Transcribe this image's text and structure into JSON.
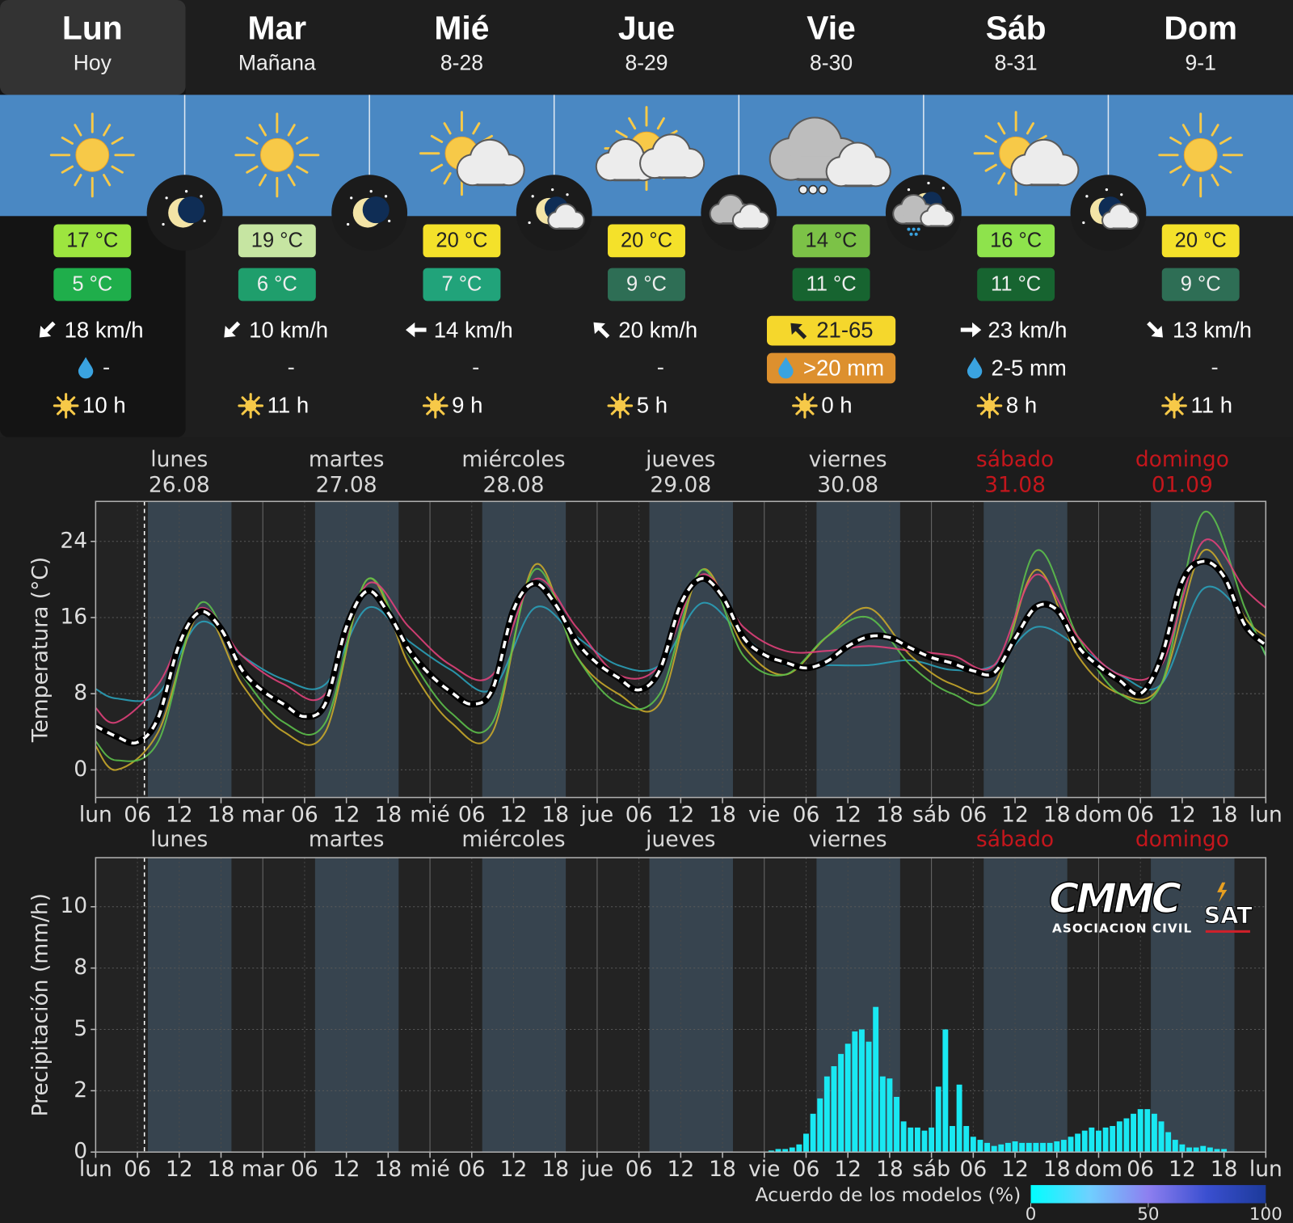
{
  "forecast": {
    "days": [
      {
        "day": "Lun",
        "sub": "Hoy",
        "max": "17 °C",
        "min": "5 °C",
        "wind": "18 km/h",
        "precip": "-",
        "sun": "10 h",
        "max_color": "#9de53f",
        "min_color": "#1fae4b"
      },
      {
        "day": "Mar",
        "sub": "Mañana",
        "max": "19 °C",
        "min": "6 °C",
        "wind": "10 km/h",
        "precip": "-",
        "sun": "11 h",
        "max_color": "#c6e5a2",
        "min_color": "#1f9e6c"
      },
      {
        "day": "Mié",
        "sub": "8-28",
        "max": "20 °C",
        "min": "7 °C",
        "wind": "14 km/h",
        "precip": "-",
        "sun": "9 h",
        "max_color": "#f4e12a",
        "min_color": "#21a37a"
      },
      {
        "day": "Jue",
        "sub": "8-29",
        "max": "20 °C",
        "min": "9 °C",
        "wind": "20 km/h",
        "precip": "-",
        "sun": "5 h",
        "max_color": "#f4e12a",
        "min_color": "#2e6e55"
      },
      {
        "day": "Vie",
        "sub": "8-30",
        "max": "14 °C",
        "min": "11 °C",
        "wind": "21-65",
        "precip": ">20 mm",
        "sun": "0 h",
        "max_color": "#7cc247",
        "min_color": "#176430",
        "wind_badge": "#f5d72c",
        "precip_badge": "#dd902e"
      },
      {
        "day": "Sáb",
        "sub": "8-31",
        "max": "16 °C",
        "min": "11 °C",
        "wind": "23 km/h",
        "precip": "2-5 mm",
        "sun": "8 h",
        "max_color": "#8ee34c",
        "min_color": "#176430"
      },
      {
        "day": "Dom",
        "sub": "9-1",
        "max": "20 °C",
        "min": "9 °C",
        "wind": "13 km/h",
        "precip": "-",
        "sun": "11 h",
        "max_color": "#f4e12a",
        "min_color": "#2e6e55"
      }
    ]
  },
  "chart_data": [
    {
      "type": "line",
      "y_label": "Temperatura (°C)",
      "day_labels": [
        {
          "name": "lunes",
          "date": "26.08",
          "color": "#d8d8d8"
        },
        {
          "name": "martes",
          "date": "27.08",
          "color": "#d8d8d8"
        },
        {
          "name": "miércoles",
          "date": "28.08",
          "color": "#d8d8d8"
        },
        {
          "name": "jueves",
          "date": "29.08",
          "color": "#d8d8d8"
        },
        {
          "name": "viernes",
          "date": "30.08",
          "color": "#d8d8d8"
        },
        {
          "name": "sábado",
          "date": "31.08",
          "color": "#c4161c"
        },
        {
          "name": "domingo",
          "date": "01.09",
          "color": "#c4161c"
        }
      ],
      "xlim": [
        0,
        168
      ],
      "xticks": [
        {
          "value": 0,
          "label": "lun"
        },
        {
          "value": 6,
          "label": "06"
        },
        12,
        18,
        {
          "value": 24,
          "label": "mar"
        },
        {
          "value": 30,
          "label": "06"
        },
        {
          "value": 36,
          "label": "12"
        },
        {
          "value": 42,
          "label": "18"
        },
        {
          "value": 48,
          "label": "mié"
        },
        {
          "value": 54,
          "label": "06"
        },
        {
          "value": 60,
          "label": "12"
        },
        {
          "value": 66,
          "label": "18"
        },
        {
          "value": 72,
          "label": "jue"
        },
        {
          "value": 78,
          "label": "06"
        },
        {
          "value": 84,
          "label": "12"
        },
        {
          "value": 90,
          "label": "18"
        },
        {
          "value": 96,
          "label": "vie"
        },
        {
          "value": 102,
          "label": "06"
        },
        {
          "value": 108,
          "label": "12"
        },
        {
          "value": 114,
          "label": "18"
        },
        {
          "value": 120,
          "label": "sáb"
        },
        {
          "value": 126,
          "label": "06"
        },
        {
          "value": 132,
          "label": "12"
        },
        {
          "value": 138,
          "label": "18"
        },
        {
          "value": 144,
          "label": "dom"
        },
        {
          "value": 150,
          "label": "06"
        },
        {
          "value": 156,
          "label": "12"
        },
        {
          "value": 162,
          "label": "18"
        },
        {
          "value": 168,
          "label": "lun"
        }
      ],
      "ylim": [
        -2.9,
        28.2
      ],
      "yticks": [
        0,
        8,
        16,
        24
      ],
      "grid": true,
      "now": 7,
      "daylight": [
        7.5,
        19.5
      ],
      "series": [
        {
          "color": "#2aa0b8",
          "x": [
            0,
            3,
            9,
            15,
            21,
            27,
            33,
            39,
            45,
            51,
            57,
            63,
            69,
            75,
            81,
            87,
            93,
            99,
            105,
            111,
            117,
            123,
            129,
            135,
            141,
            147,
            153,
            159,
            165,
            168
          ],
          "values": [
            8.5,
            7.5,
            8,
            15.5,
            12,
            9.5,
            9,
            17,
            13.5,
            10.5,
            8.5,
            17,
            14,
            11,
            11,
            17.5,
            14,
            11,
            11,
            11,
            11.5,
            10.5,
            11,
            15,
            13,
            10,
            9,
            19,
            16,
            12
          ]
        },
        {
          "color": "#c8a82a",
          "x": [
            0,
            3,
            9,
            15,
            21,
            27,
            33,
            39,
            45,
            51,
            57,
            63,
            69,
            75,
            81,
            87,
            93,
            99,
            105,
            111,
            117,
            123,
            129,
            135,
            141,
            147,
            153,
            159,
            165,
            168
          ],
          "values": [
            2.5,
            0,
            4,
            16.5,
            9,
            4,
            4,
            20,
            11,
            5,
            4,
            21.5,
            12,
            8,
            7,
            21,
            13,
            10,
            14,
            17,
            12,
            9,
            9,
            21,
            12,
            8,
            9,
            23,
            16,
            14
          ]
        },
        {
          "color": "#5cbf4a",
          "x": [
            0,
            3,
            9,
            15,
            21,
            27,
            33,
            39,
            45,
            51,
            57,
            63,
            69,
            75,
            81,
            87,
            93,
            99,
            105,
            111,
            117,
            123,
            129,
            135,
            141,
            147,
            153,
            159,
            165,
            168
          ],
          "values": [
            3,
            1,
            3,
            17.5,
            10,
            5,
            5,
            20,
            12,
            6,
            5,
            21,
            12,
            7,
            8,
            21,
            12,
            10,
            14,
            16,
            11,
            8,
            8,
            23,
            14,
            8,
            9,
            27,
            17,
            12
          ]
        },
        {
          "color": "#e0407a",
          "x": [
            0,
            3,
            9,
            15,
            21,
            27,
            33,
            39,
            45,
            51,
            57,
            63,
            69,
            75,
            81,
            87,
            93,
            99,
            105,
            111,
            117,
            123,
            129,
            135,
            141,
            147,
            153,
            159,
            165,
            168
          ],
          "values": [
            6.5,
            5,
            9,
            17,
            12,
            9,
            8,
            19.5,
            15,
            11,
            10,
            20,
            15,
            10,
            11,
            20.5,
            15,
            12.5,
            12.5,
            13,
            12.5,
            12,
            11,
            20.5,
            14,
            10,
            11,
            24,
            19,
            17
          ]
        },
        {
          "color": "#ffffff",
          "style": "dashed",
          "x": [
            0,
            3,
            6,
            9,
            12,
            15,
            18,
            21,
            24,
            27,
            30,
            33,
            36,
            39,
            42,
            45,
            48,
            51,
            54,
            57,
            60,
            63,
            66,
            69,
            72,
            75,
            78,
            81,
            84,
            87,
            90,
            93,
            96,
            99,
            102,
            105,
            108,
            111,
            114,
            117,
            120,
            123,
            126,
            129,
            132,
            135,
            138,
            141,
            144,
            147,
            150,
            153,
            156,
            159,
            162,
            165,
            168
          ],
          "values": [
            4.6,
            3.5,
            2.9,
            5.5,
            13.2,
            16.6,
            14.8,
            10.5,
            8.3,
            6.9,
            5.6,
            7.0,
            15.0,
            18.8,
            16.5,
            12.6,
            10.0,
            8.2,
            6.9,
            8.5,
            16.8,
            19.6,
            17.4,
            13.5,
            11.2,
            9.7,
            8.4,
            10.5,
            17.4,
            20.1,
            18.2,
            13.9,
            12.1,
            11.3,
            10.7,
            11.4,
            13.0,
            14.0,
            13.9,
            12.8,
            11.8,
            11.2,
            10.4,
            10.2,
            13.8,
            17.1,
            16.8,
            13.0,
            10.9,
            9.4,
            8.0,
            11.8,
            19.8,
            21.9,
            20.3,
            15.2,
            13.1
          ]
        }
      ]
    },
    {
      "type": "bar",
      "y_label": "Precipitación (mm/h)",
      "day_labels": [
        {
          "name": "lunes",
          "color": "#d8d8d8"
        },
        {
          "name": "martes",
          "color": "#d8d8d8"
        },
        {
          "name": "miércoles",
          "color": "#d8d8d8"
        },
        {
          "name": "jueves",
          "color": "#d8d8d8"
        },
        {
          "name": "viernes",
          "color": "#d8d8d8"
        },
        {
          "name": "sábado",
          "color": "#c4161c"
        },
        {
          "name": "domingo",
          "color": "#c4161c"
        }
      ],
      "xlim": [
        0,
        168
      ],
      "xticks": [
        {
          "value": 0,
          "label": "lun"
        },
        {
          "value": 6,
          "label": "06"
        },
        12,
        18,
        {
          "value": 24,
          "label": "mar"
        },
        {
          "value": 30,
          "label": "06"
        },
        {
          "value": 36,
          "label": "12"
        },
        {
          "value": 42,
          "label": "18"
        },
        {
          "value": 48,
          "label": "mié"
        },
        {
          "value": 54,
          "label": "06"
        },
        {
          "value": 60,
          "label": "12"
        },
        {
          "value": 66,
          "label": "18"
        },
        {
          "value": 72,
          "label": "jue"
        },
        {
          "value": 78,
          "label": "06"
        },
        {
          "value": 84,
          "label": "12"
        },
        {
          "value": 90,
          "label": "18"
        },
        {
          "value": 96,
          "label": "vie"
        },
        {
          "value": 102,
          "label": "06"
        },
        {
          "value": 108,
          "label": "12"
        },
        {
          "value": 114,
          "label": "18"
        },
        {
          "value": 120,
          "label": "sáb"
        },
        {
          "value": 126,
          "label": "06"
        },
        {
          "value": 132,
          "label": "12"
        },
        {
          "value": 138,
          "label": "18"
        },
        {
          "value": 144,
          "label": "dom"
        },
        {
          "value": 150,
          "label": "06"
        },
        {
          "value": 156,
          "label": "12"
        },
        {
          "value": 162,
          "label": "18"
        },
        {
          "value": 168,
          "label": "lun"
        }
      ],
      "ylim": [
        0,
        11.6
      ],
      "yticks": [
        0,
        2,
        5,
        8,
        10
      ],
      "yscale": "piecewise",
      "grid": true,
      "now": 7,
      "daylight": [
        7.5,
        19.5
      ],
      "color": "#19e8f2",
      "x": [
        97,
        98,
        99,
        100,
        101,
        102,
        103,
        104,
        105,
        106,
        107,
        108,
        109,
        110,
        111,
        112,
        113,
        114,
        115,
        116,
        117,
        118,
        119,
        120,
        121,
        122,
        123,
        124,
        125,
        126,
        127,
        128,
        129,
        130,
        131,
        132,
        133,
        134,
        135,
        136,
        137,
        138,
        139,
        140,
        141,
        142,
        143,
        144,
        145,
        146,
        147,
        148,
        149,
        150,
        151,
        152,
        153,
        154,
        155,
        156,
        157,
        158,
        159,
        160,
        161,
        162
      ],
      "values": [
        0.05,
        0.1,
        0.1,
        0.15,
        0.25,
        0.6,
        1.25,
        1.75,
        2.7,
        3.2,
        3.8,
        4.3,
        4.9,
        5.0,
        4.4,
        6.1,
        2.7,
        2.6,
        1.8,
        1.0,
        0.8,
        0.8,
        0.7,
        0.8,
        2.2,
        5.0,
        0.85,
        2.3,
        0.85,
        0.5,
        0.4,
        0.3,
        0.2,
        0.25,
        0.3,
        0.35,
        0.3,
        0.3,
        0.3,
        0.3,
        0.3,
        0.35,
        0.4,
        0.5,
        0.6,
        0.7,
        0.8,
        0.7,
        0.8,
        0.85,
        1.0,
        1.1,
        1.25,
        1.4,
        1.4,
        1.25,
        1.0,
        0.65,
        0.4,
        0.25,
        0.15,
        0.15,
        0.2,
        0.15,
        0.1,
        0.1
      ],
      "colorbar": {
        "label": "Acuerdo de los modelos (%)",
        "lim": [
          0,
          100
        ],
        "ticks": [
          0,
          50,
          100
        ],
        "colors": [
          "#00ffff",
          "#6fd0ff",
          "#8d7ff0",
          "#3a4fd0",
          "#1c3a9a"
        ]
      }
    }
  ],
  "logo": {
    "name": "CMMC",
    "suffix": "SAT",
    "subtitle": "ASOCIACION CIVIL"
  }
}
